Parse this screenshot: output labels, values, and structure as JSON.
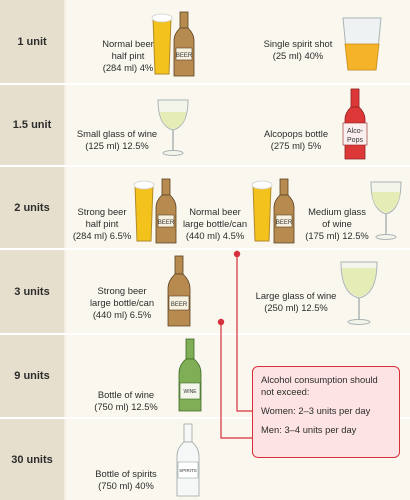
{
  "rows": [
    {
      "units": "1 unit"
    },
    {
      "units": "1.5 unit"
    },
    {
      "units": "2 units"
    },
    {
      "units": "3 units"
    },
    {
      "units": "9 units"
    },
    {
      "units": "30 units"
    }
  ],
  "drinks": {
    "normal_beer_half_pint": {
      "line1": "Normal beer",
      "line2": "half pint",
      "line3": "(284 ml) 4%"
    },
    "single_spirit_shot": {
      "line1": "Single spirit shot",
      "line2": "(25 ml) 40%"
    },
    "small_glass_wine": {
      "line1": "Small glass of wine",
      "line2": "(125 ml) 12.5%"
    },
    "alcopops_bottle": {
      "line1": "Alcopops bottle",
      "line2": "(275 ml) 5%"
    },
    "strong_beer_half_pint": {
      "line1": "Strong beer",
      "line2": "half pint",
      "line3": "(284 ml) 6.5%"
    },
    "normal_beer_large": {
      "line1": "Normal beer",
      "line2": "large bottle/can",
      "line3": "(440 ml) 4.5%"
    },
    "medium_glass_wine": {
      "line1": "Medium glass",
      "line2": "of wine",
      "line3": "(175 ml) 12.5%"
    },
    "strong_beer_large": {
      "line1": "Strong beer",
      "line2": "large bottle/can",
      "line3": "(440 ml) 6.5%"
    },
    "large_glass_wine": {
      "line1": "Large glass of wine",
      "line2": "(250 ml) 12.5%"
    },
    "bottle_of_wine": {
      "line1": "Bottle of wine",
      "line2": "(750 ml) 12.5%"
    },
    "bottle_of_spirits": {
      "line1": "Bottle of spirits",
      "line2": "(750 ml) 40%"
    }
  },
  "bottle_labels": {
    "beer": "BEER",
    "alcopops_1": "Alco-",
    "alcopops_2": "Pops",
    "wine": "WINE",
    "spirits": "SPIRITS"
  },
  "callout": {
    "title": "Alcohol consumption should not exceed:",
    "women": "Women: 2–3 units per day",
    "men": "Men: 3–4 units per day"
  },
  "colors": {
    "callout_border": "#d5303c",
    "callout_fill": "#fde3e3",
    "beer": "#f4c21c",
    "bottle": "#b78a4f",
    "wine": "#e5ecb6",
    "wine_bottle": "#7fae56",
    "alcopops": "#dc3838"
  }
}
